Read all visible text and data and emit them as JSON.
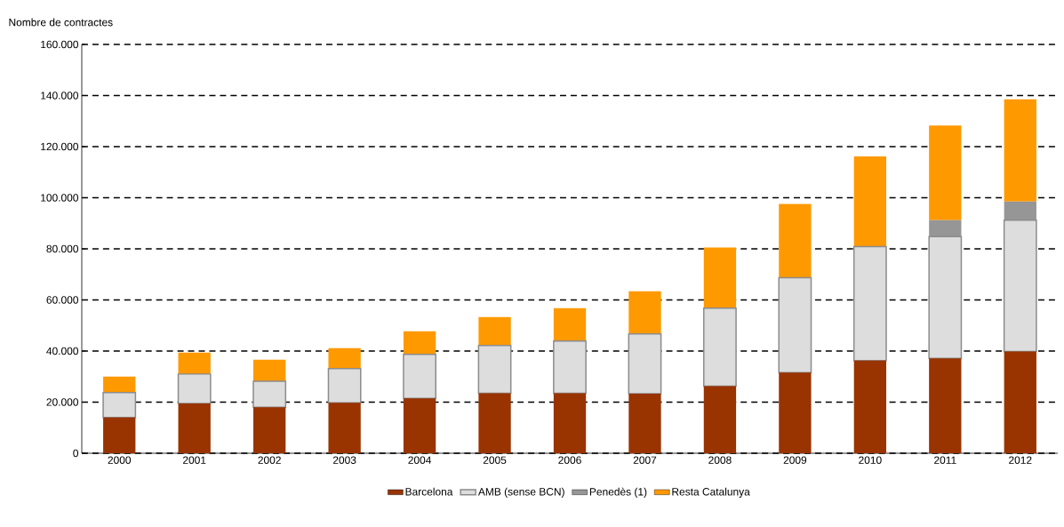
{
  "chart_data": {
    "type": "bar",
    "stacked": true,
    "ylabel": "Nombre de contractes",
    "categories": [
      "2000",
      "2001",
      "2002",
      "2003",
      "2004",
      "2005",
      "2006",
      "2007",
      "2008",
      "2009",
      "2010",
      "2011",
      "2012"
    ],
    "series": [
      {
        "name": "Barcelona",
        "color": "#993300",
        "values": [
          14000,
          19500,
          18000,
          19700,
          21500,
          23500,
          23500,
          23300,
          26300,
          31600,
          36300,
          37100,
          39800
        ]
      },
      {
        "name": "AMB (sense BCN)",
        "color": "#8c8c8c",
        "values": [
          9700,
          11500,
          10200,
          13400,
          17200,
          18700,
          20400,
          23400,
          30500,
          37100,
          44600,
          47700,
          51400
        ]
      },
      {
        "name": "Penedès (1)",
        "color": "#969696",
        "values": [
          0,
          0,
          0,
          0,
          0,
          0,
          0,
          0,
          0,
          0,
          0,
          6400,
          7300
        ]
      },
      {
        "name": "Resta Catalunya",
        "color": "#ff9900",
        "values": [
          6300,
          8400,
          8400,
          8000,
          9000,
          11100,
          12900,
          16700,
          23700,
          28900,
          35300,
          37100,
          40000
        ]
      }
    ],
    "ylim": [
      0,
      160000
    ],
    "yticks": [
      0,
      {
        "value": 20000,
        "label": "20.000"
      },
      {
        "value": 40000,
        "label": "40.000"
      },
      {
        "value": 60000,
        "label": "60.000"
      },
      {
        "value": 80000,
        "label": "80.000"
      },
      {
        "value": 100000,
        "label": "100.000"
      },
      {
        "value": 120000,
        "label": "120.000"
      },
      {
        "value": 140000,
        "label": "140.000"
      },
      {
        "value": 160000,
        "label": "160.000"
      }
    ],
    "grid": "y",
    "legend": "bottom"
  }
}
